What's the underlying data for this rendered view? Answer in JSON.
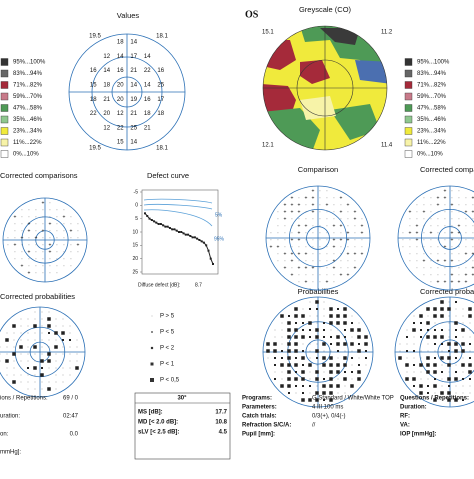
{
  "values_panel": {
    "title": "Values",
    "corners": [
      "19.5",
      "18.1",
      "19.5",
      "18.1"
    ],
    "points": [
      "18",
      "14",
      "12",
      "14",
      "17",
      "14",
      "16",
      "14",
      "16",
      "21",
      "22",
      "16",
      "15",
      "18",
      "20",
      "14",
      "14",
      "25",
      "18",
      "21",
      "20",
      "19",
      "16",
      "17",
      "22",
      "20",
      "12",
      "21",
      "18",
      "18",
      "12",
      "22",
      "25",
      "21",
      "15",
      "14"
    ]
  },
  "legend_left": [
    "95%...100%",
    "83%...94%",
    "71%...82%",
    "59%...70%",
    "47%...58%",
    "35%...46%",
    "23%...34%",
    "11%...22%",
    "0%...10%"
  ],
  "greyscale_panel": {
    "eye": "OS",
    "title": "Greyscale (CO)",
    "corners": [
      "15.1",
      "11.2",
      "12.1",
      "11.4"
    ]
  },
  "legend_right": [
    "95%...100%",
    "83%...94%",
    "71%...82%",
    "59%...70%",
    "47%...58%",
    "35%...46%",
    "23%...34%",
    "11%...22%",
    "0%...10%"
  ],
  "panels": {
    "corrected_comparisons_left": "Corrected comparisons",
    "comparison": "Comparison",
    "corrected_comparisons_right": "Corrected compar",
    "corrected_probabilities_left": "Corrected probabilities",
    "probabilities": "Probabilities",
    "corrected_probabilities_right": "Corrected probabilities"
  },
  "defect_curve": {
    "title": "Defect curve",
    "yticks": [
      -5,
      0,
      5,
      10,
      15,
      20,
      25
    ],
    "ylim": [
      -5,
      25
    ],
    "band_labels": [
      "5%",
      "95%"
    ],
    "footer": "Diffuse defect [dB]:",
    "diffuse_defect": "8.7",
    "values": [
      3,
      4,
      5,
      5.5,
      6,
      6.5,
      7,
      7,
      7.5,
      8,
      8,
      8.5,
      9,
      9,
      9.5,
      10,
      10,
      10.5,
      11,
      11,
      11.5,
      12,
      12,
      12.5,
      13,
      13.5,
      14,
      15,
      17,
      20,
      22
    ]
  },
  "probability_legend": [
    "P > 5",
    "P < 5",
    "P < 2",
    "P < 1",
    "P < 0,5"
  ],
  "left_info": [
    [
      "ions / Repetitions:",
      "69 / 0"
    ],
    [
      "uration:",
      "02:47"
    ],
    [
      "on:",
      "0.0"
    ],
    [
      "mmHg]:",
      ""
    ]
  ],
  "indices": {
    "header": "30°",
    "rows": [
      [
        "MS [dB]:",
        "17.7"
      ],
      [
        "MD [< 2.0 dB]:",
        "10.8"
      ],
      [
        "sLV [< 2.5 dB]:",
        "4.5"
      ]
    ]
  },
  "right_info": [
    [
      "Programs:",
      "G Standard / White/White TOP"
    ],
    [
      "Parameters:",
      "4 III 100 ms"
    ],
    [
      "Catch trials:",
      "0/3(+), 0/4(-)"
    ],
    [
      "Refraction S/C/A:",
      "//"
    ],
    [
      "Pupil [mm]:",
      ""
    ]
  ],
  "far_right_info": [
    "Questions / Repetitions:",
    "Duration:",
    "RF:",
    "VA:",
    "IOP [mmHg]:"
  ]
}
